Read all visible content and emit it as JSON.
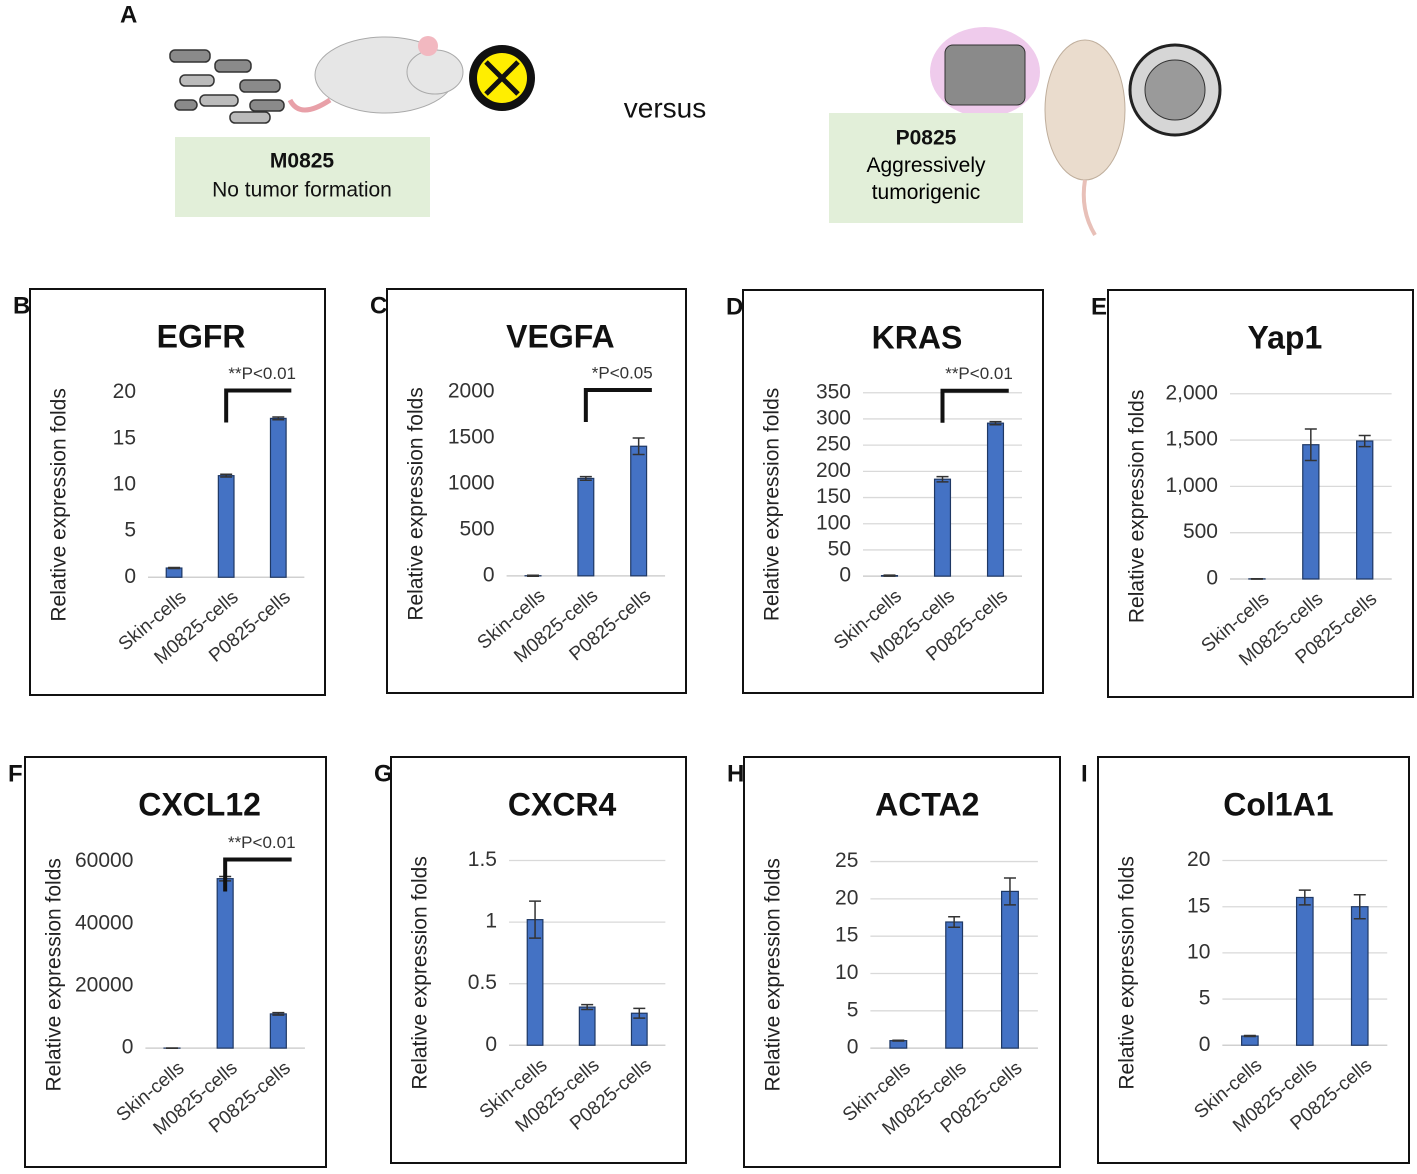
{
  "panel_a": {
    "label": "A",
    "left_name": "M0825",
    "left_text": "No tumor formation",
    "versus": "versus",
    "right_name": "P0825",
    "right_text": "Aggressively tumorigenic"
  },
  "chart_data": [
    {
      "type": "bar",
      "panel_label": "B",
      "title": "EGFR",
      "ylabel": "Relative expression folds",
      "categories": [
        "Skin-cells",
        "M0825-cells",
        "P0825-cells"
      ],
      "values": [
        1,
        11,
        17.2
      ],
      "errors": [
        0.05,
        0.15,
        0.15
      ],
      "color": "#4472c4",
      "ylim": [
        0,
        20
      ],
      "yticks": [
        0,
        5,
        10,
        15,
        20
      ],
      "grid": false,
      "annotation": "**P<0.01"
    },
    {
      "type": "bar",
      "panel_label": "C",
      "title": "VEGFA",
      "ylabel": "Relative expression folds",
      "categories": [
        "Skin-cells",
        "M0825-cells",
        "P0825-cells"
      ],
      "values": [
        1,
        1060,
        1410
      ],
      "errors": [
        5,
        20,
        90
      ],
      "color": "#4472c4",
      "ylim": [
        0,
        2000
      ],
      "yticks": [
        0,
        500,
        1000,
        1500,
        2000
      ],
      "grid": false,
      "annotation": "*P<0.05"
    },
    {
      "type": "bar",
      "panel_label": "D",
      "title": "KRAS",
      "ylabel": "Relative expression folds",
      "categories": [
        "Skin-cells",
        "M0825-cells",
        "P0825-cells"
      ],
      "values": [
        1,
        185,
        292
      ],
      "errors": [
        1,
        5,
        3
      ],
      "color": "#4472c4",
      "ylim": [
        0,
        350
      ],
      "yticks": [
        0,
        50,
        100,
        150,
        200,
        250,
        300,
        350
      ],
      "grid": true,
      "annotation": "**P<0.01"
    },
    {
      "type": "bar",
      "panel_label": "E",
      "title": "Yap1",
      "ylabel": "Relative expression folds",
      "categories": [
        "Skin-cells",
        "M0825-cells",
        "P0825-cells"
      ],
      "values": [
        1,
        1450,
        1490
      ],
      "errors": [
        2,
        170,
        60
      ],
      "color": "#4472c4",
      "ylim": [
        0,
        2000
      ],
      "yticks": [
        0,
        500,
        {
          "value": 1000,
          "label": "1,000"
        },
        {
          "value": 1500,
          "label": "1,500"
        },
        {
          "value": 2000,
          "label": "2,000"
        }
      ],
      "grid": true
    },
    {
      "type": "bar",
      "panel_label": "F",
      "title": "CXCL12",
      "ylabel": "Relative expression folds",
      "categories": [
        "Skin-cells",
        "M0825-cells",
        "P0825-cells"
      ],
      "values": [
        1,
        54500,
        11000
      ],
      "errors": [
        50,
        700,
        400
      ],
      "color": "#4472c4",
      "ylim": [
        0,
        60000
      ],
      "yticks": [
        0,
        20000,
        40000,
        60000
      ],
      "grid": false,
      "annotation": "**P<0.01"
    },
    {
      "type": "bar",
      "panel_label": "G",
      "title": "CXCR4",
      "ylabel": "Relative expression folds",
      "categories": [
        "Skin-cells",
        "M0825-cells",
        "P0825-cells"
      ],
      "values": [
        1.02,
        0.31,
        0.26
      ],
      "errors": [
        0.15,
        0.02,
        0.04
      ],
      "color": "#4472c4",
      "ylim": [
        0,
        1.5
      ],
      "yticks": [
        0,
        0.5,
        1,
        1.5
      ],
      "grid": true
    },
    {
      "type": "bar",
      "panel_label": "H",
      "title": "ACTA2",
      "ylabel": "Relative expression folds",
      "categories": [
        "Skin-cells",
        "M0825-cells",
        "P0825-cells"
      ],
      "values": [
        1,
        16.9,
        21
      ],
      "errors": [
        0.05,
        0.7,
        1.8
      ],
      "color": "#4472c4",
      "ylim": [
        0,
        25
      ],
      "yticks": [
        0,
        5,
        10,
        15,
        20,
        25
      ],
      "grid": true
    },
    {
      "type": "bar",
      "panel_label": "I",
      "title": "Col1A1",
      "ylabel": "Relative expression folds",
      "categories": [
        "Skin-cells",
        "M0825-cells",
        "P0825-cells"
      ],
      "values": [
        1,
        16,
        15
      ],
      "errors": [
        0.05,
        0.8,
        1.3
      ],
      "color": "#4472c4",
      "ylim": [
        0,
        20
      ],
      "yticks": [
        0,
        5,
        10,
        15,
        20
      ],
      "grid": true
    }
  ]
}
